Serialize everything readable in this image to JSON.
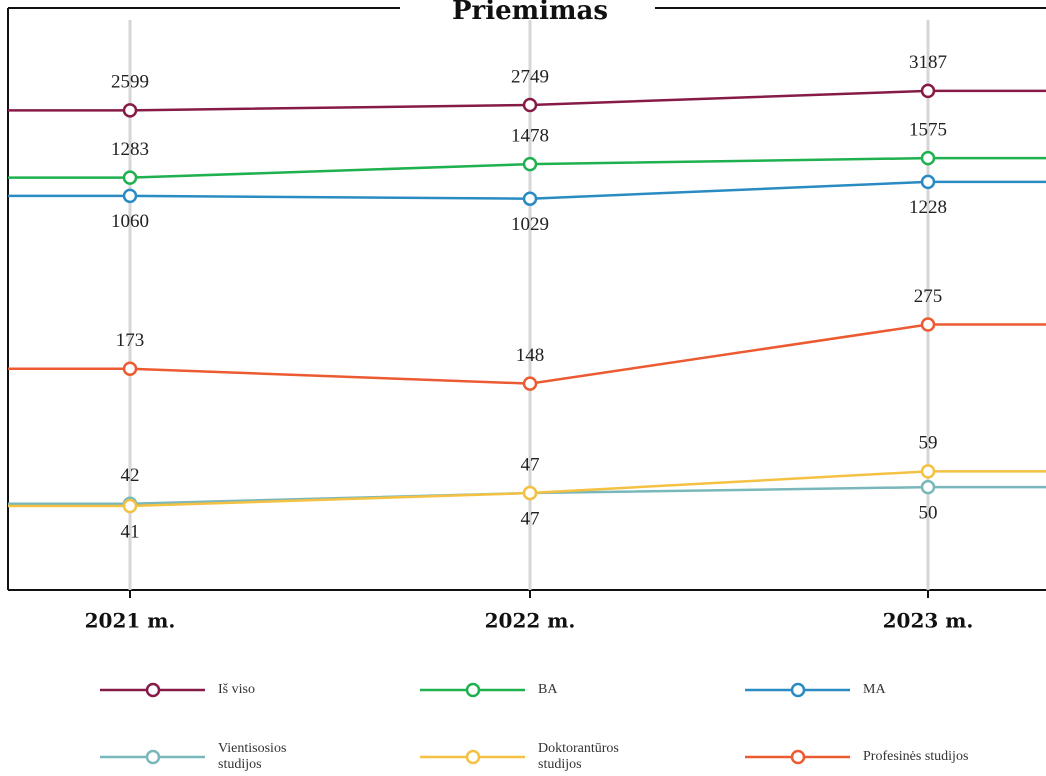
{
  "chart_data": {
    "type": "line",
    "title": "Priemimas",
    "categories": [
      "2021 m.",
      "2022 m.",
      "2023 m."
    ],
    "log_scale": true,
    "ylim": [
      17,
      7600
    ],
    "grid": true,
    "series": [
      {
        "name": "Iš viso",
        "color": "#861b48",
        "values": [
          2599,
          2749,
          3187
        ]
      },
      {
        "name": "BA",
        "color": "#1fb14f",
        "values": [
          1283,
          1478,
          1575
        ]
      },
      {
        "name": "MA",
        "color": "#2a8bc3",
        "values": [
          1060,
          1029,
          1228
        ]
      },
      {
        "name": "Vientisosios studijos",
        "color": "#79b7bb",
        "values": [
          42,
          47,
          50
        ]
      },
      {
        "name": "Doktorantūros studijos",
        "color": "#f4c143",
        "values": [
          41,
          47,
          59
        ]
      },
      {
        "name": "Profesinės studijos",
        "color": "#ec5a31",
        "values": [
          173,
          148,
          275
        ]
      }
    ]
  }
}
